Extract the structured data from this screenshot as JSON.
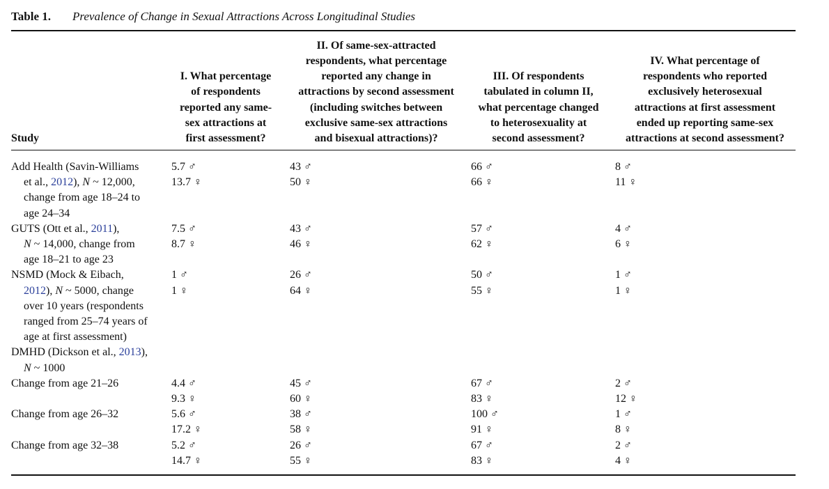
{
  "table": {
    "label": "Table 1.",
    "title": "Prevalence of Change in Sexual Attractions Across Longitudinal Studies",
    "headers": [
      [
        "Study"
      ],
      [
        "I. What percentage",
        "of respondents",
        "reported any same-",
        "sex attractions at",
        "first assessment?"
      ],
      [
        "II. Of same-sex-attracted",
        "respondents, what percentage",
        "reported any change in",
        "attractions by second assessment",
        "(including switches between",
        "exclusive same-sex attractions",
        "and bisexual attractions)?"
      ],
      [
        "III. Of respondents",
        "tabulated in column II,",
        "what percentage changed",
        "to heterosexuality at",
        "second assessment?"
      ],
      [
        "IV. What percentage of",
        "respondents who reported",
        "exclusively heterosexual",
        "attractions at first assessment",
        "ended up reporting same-sex",
        "attractions at second assessment?"
      ]
    ],
    "rows": [
      {
        "study": [
          "Add Health (Savin-Williams",
          "et al., 2012), N ~ 12,000,",
          "change from age 18–24 to",
          "age 24–34"
        ],
        "cells": [
          [
            "5.7 ♂",
            "13.7 ♀"
          ],
          [
            "43 ♂",
            "50 ♀"
          ],
          [
            "66 ♂",
            "66 ♀"
          ],
          [
            "8 ♂",
            "11 ♀"
          ]
        ]
      },
      {
        "study": [
          "GUTS (Ott et al., 2011),",
          "N ~ 14,000, change from",
          "age 18–21 to age 23"
        ],
        "cells": [
          [
            "7.5 ♂",
            "8.7 ♀"
          ],
          [
            "43 ♂",
            "46 ♀"
          ],
          [
            "57 ♂",
            "62 ♀"
          ],
          [
            "4 ♂",
            "6 ♀"
          ]
        ]
      },
      {
        "study": [
          "NSMD (Mock & Eibach,",
          "2012), N ~ 5000, change",
          "over 10 years (respondents",
          "ranged from 25–74 years of",
          "age at first assessment)"
        ],
        "cells": [
          [
            "1 ♂",
            "1 ♀"
          ],
          [
            "26 ♂",
            "64 ♀"
          ],
          [
            "50 ♂",
            "55 ♀"
          ],
          [
            "1 ♂",
            "1 ♀"
          ]
        ]
      },
      {
        "study": [
          "DMHD (Dickson et al., 2013),",
          "N ~ 1000"
        ],
        "cells": [
          [],
          [],
          [],
          []
        ]
      },
      {
        "study": [
          "Change from age 21–26"
        ],
        "cells": [
          [
            "4.4 ♂",
            "9.3 ♀"
          ],
          [
            "45 ♂",
            "60 ♀"
          ],
          [
            "67 ♂",
            "83 ♀"
          ],
          [
            "2 ♂",
            "12 ♀"
          ]
        ]
      },
      {
        "study": [
          "Change from age 26–32"
        ],
        "cells": [
          [
            "5.6 ♂",
            "17.2 ♀"
          ],
          [
            "38 ♂",
            "58 ♀"
          ],
          [
            "100 ♂",
            "91 ♀"
          ],
          [
            "1 ♂",
            "8 ♀"
          ]
        ]
      },
      {
        "study": [
          "Change from age 32–38"
        ],
        "cells": [
          [
            "5.2 ♂",
            "14.7 ♀"
          ],
          [
            "26 ♂",
            "55 ♀"
          ],
          [
            "67 ♂",
            "83 ♀"
          ],
          [
            "2 ♂",
            "4 ♀"
          ]
        ]
      }
    ]
  }
}
